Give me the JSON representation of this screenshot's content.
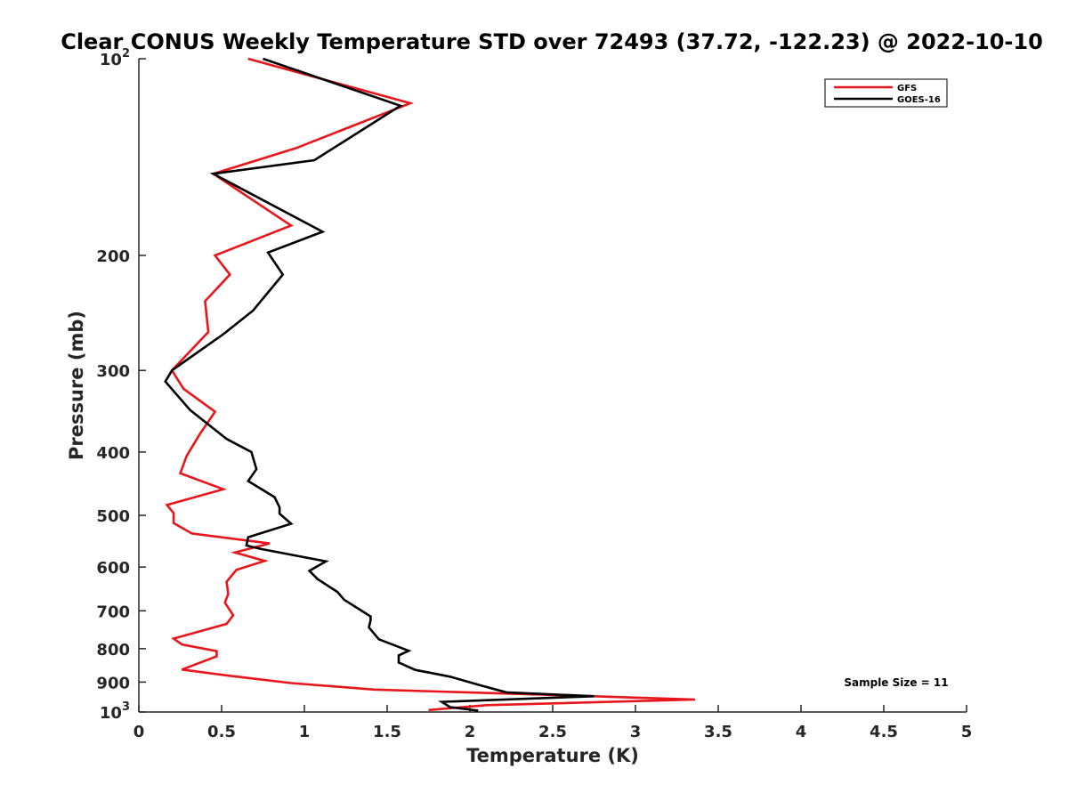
{
  "chart_data": {
    "type": "line",
    "title": "Clear CONUS Weekly Temperature STD over 72493 (37.72, -122.23) @ 2022-10-10",
    "xlabel": "Temperature (K)",
    "ylabel": "Pressure (mb)",
    "xlim": [
      0,
      5
    ],
    "ylim": [
      100,
      1000
    ],
    "y_scale": "log",
    "y_reversed": true,
    "grid": false,
    "x_ticks": [
      0,
      0.5,
      1,
      1.5,
      2,
      2.5,
      3,
      3.5,
      4,
      4.5,
      5
    ],
    "x_tick_labels": [
      "0",
      "0.5",
      "1",
      "1.5",
      "2",
      "2.5",
      "3",
      "3.5",
      "4",
      "4.5",
      "5"
    ],
    "y_ticks": [
      100,
      200,
      300,
      400,
      500,
      600,
      700,
      800,
      900,
      1000
    ],
    "y_tick_labels": [
      {
        "base": "10",
        "exp": "2"
      },
      {
        "base": "200"
      },
      {
        "base": "300"
      },
      {
        "base": "400"
      },
      {
        "base": "500"
      },
      {
        "base": "600"
      },
      {
        "base": "700"
      },
      {
        "base": "800"
      },
      {
        "base": "900"
      },
      {
        "base": "10",
        "exp": "3"
      }
    ],
    "legend_position": "top-right",
    "annotation": "Sample Size = 11",
    "series": [
      {
        "name": "GFS",
        "color": "#e8161b",
        "points": [
          [
            0.66,
            100
          ],
          [
            1.64,
            117
          ],
          [
            0.95,
            137
          ],
          [
            0.45,
            150
          ],
          [
            0.92,
            180
          ],
          [
            0.46,
            200
          ],
          [
            0.55,
            214
          ],
          [
            0.4,
            235
          ],
          [
            0.42,
            262
          ],
          [
            0.2,
            300
          ],
          [
            0.27,
            320
          ],
          [
            0.46,
            347
          ],
          [
            0.37,
            375
          ],
          [
            0.29,
            405
          ],
          [
            0.25,
            431
          ],
          [
            0.51,
            456
          ],
          [
            0.17,
            482
          ],
          [
            0.21,
            496
          ],
          [
            0.21,
            514
          ],
          [
            0.32,
            533
          ],
          [
            0.79,
            552
          ],
          [
            0.58,
            570
          ],
          [
            0.76,
            587
          ],
          [
            0.59,
            606
          ],
          [
            0.53,
            632
          ],
          [
            0.54,
            660
          ],
          [
            0.52,
            680
          ],
          [
            0.57,
            711
          ],
          [
            0.53,
            733
          ],
          [
            0.21,
            772
          ],
          [
            0.26,
            788
          ],
          [
            0.47,
            807
          ],
          [
            0.47,
            822
          ],
          [
            0.26,
            861
          ],
          [
            0.56,
            881
          ],
          [
            0.92,
            903
          ],
          [
            1.42,
            924
          ],
          [
            2.75,
            946
          ],
          [
            3.36,
            957
          ],
          [
            2.1,
            976
          ],
          [
            1.75,
            993
          ]
        ]
      },
      {
        "name": "GOES-16",
        "color": "#000000",
        "points": [
          [
            0.75,
            100
          ],
          [
            1.58,
            118
          ],
          [
            1.06,
            143
          ],
          [
            0.45,
            150
          ],
          [
            1.11,
            184
          ],
          [
            0.78,
            198
          ],
          [
            0.87,
            214
          ],
          [
            0.69,
            243
          ],
          [
            0.51,
            264
          ],
          [
            0.2,
            300
          ],
          [
            0.16,
            312
          ],
          [
            0.31,
            345
          ],
          [
            0.53,
            382
          ],
          [
            0.68,
            400
          ],
          [
            0.71,
            425
          ],
          [
            0.66,
            443
          ],
          [
            0.82,
            469
          ],
          [
            0.85,
            486
          ],
          [
            0.85,
            497
          ],
          [
            0.92,
            515
          ],
          [
            0.66,
            540
          ],
          [
            0.65,
            556
          ],
          [
            0.74,
            563
          ],
          [
            1.13,
            588
          ],
          [
            1.03,
            608
          ],
          [
            1.08,
            626
          ],
          [
            1.2,
            655
          ],
          [
            1.24,
            673
          ],
          [
            1.4,
            714
          ],
          [
            1.4,
            724
          ],
          [
            1.39,
            742
          ],
          [
            1.45,
            774
          ],
          [
            1.63,
            806
          ],
          [
            1.57,
            819
          ],
          [
            1.57,
            840
          ],
          [
            1.67,
            862
          ],
          [
            1.88,
            883
          ],
          [
            2.06,
            910
          ],
          [
            2.22,
            933
          ],
          [
            2.75,
            946
          ],
          [
            1.83,
            965
          ],
          [
            1.88,
            983
          ],
          [
            2.05,
            995
          ]
        ]
      }
    ]
  }
}
